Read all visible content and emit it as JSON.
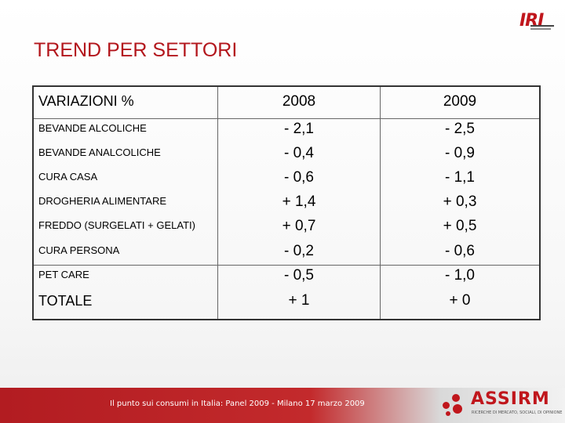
{
  "logo": {
    "text": "IRI"
  },
  "title": "TREND PER SETTORI",
  "table": {
    "header": {
      "label": "VARIAZIONI %",
      "col1": "2008",
      "col2": "2009"
    },
    "rows": [
      {
        "label": "BEVANDE ALCOLICHE",
        "v2008": "- 2,1",
        "v2009": "- 2,5"
      },
      {
        "label": "BEVANDE ANALCOLICHE",
        "v2008": "- 0,4",
        "v2009": "- 0,9"
      },
      {
        "label": "CURA CASA",
        "v2008": "- 0,6",
        "v2009": "- 1,1"
      },
      {
        "label": "DROGHERIA ALIMENTARE",
        "v2008": "+ 1,4",
        "v2009": "+ 0,3"
      },
      {
        "label": "FREDDO (SURGELATI + GELATI)",
        "v2008": "+ 0,7",
        "v2009": "+ 0,5"
      },
      {
        "label": "CURA PERSONA",
        "v2008": "- 0,2",
        "v2009": "- 0,6"
      },
      {
        "label": "PET CARE",
        "v2008": "- 0,5",
        "v2009": "- 1,0"
      }
    ],
    "total": {
      "label": "TOTALE",
      "v2008": "+ 1",
      "v2009": "+ 0"
    }
  },
  "footer": {
    "text": "Il punto sui consumi in Italia: Panel 2009 - Milano 17 marzo 2009",
    "brand": "ASSIRM",
    "brand_sub": "RICERCHE DI MERCATO, SOCIALI, DI OPINIONE"
  },
  "colors": {
    "accent": "#b3161c",
    "footer_red": "#b21c21"
  }
}
